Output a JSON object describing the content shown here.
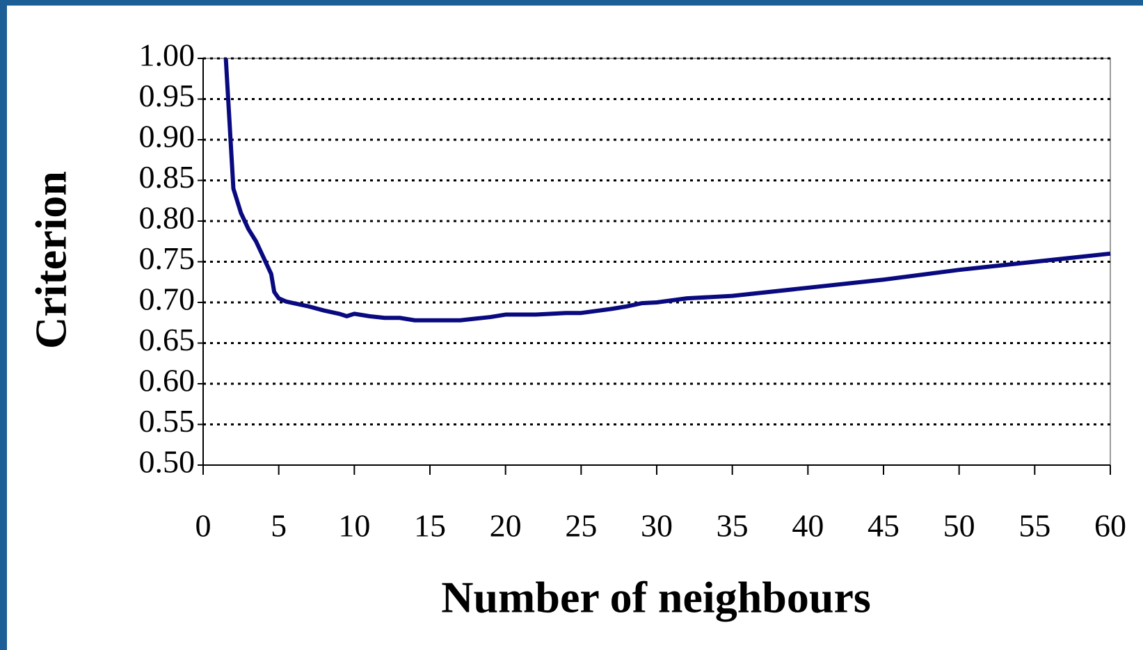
{
  "chart_data": {
    "type": "line",
    "x_label": "Number of neighbours",
    "y_label": "Criterion",
    "x": [
      1.5,
      2,
      2.5,
      3,
      3.5,
      4,
      4.5,
      4.7,
      5,
      5.5,
      6,
      7,
      8,
      9,
      9.5,
      10,
      11,
      12,
      13,
      14,
      15,
      16,
      17,
      18,
      19,
      20,
      22,
      24,
      25,
      27,
      28,
      29,
      30,
      32,
      35,
      40,
      45,
      50,
      55,
      60
    ],
    "series": [
      {
        "name": "Criterion",
        "color": "#0a0a80",
        "values": [
          1.0,
          0.84,
          0.81,
          0.79,
          0.775,
          0.755,
          0.735,
          0.713,
          0.705,
          0.701,
          0.699,
          0.695,
          0.69,
          0.686,
          0.683,
          0.686,
          0.683,
          0.681,
          0.681,
          0.678,
          0.678,
          0.678,
          0.678,
          0.68,
          0.682,
          0.685,
          0.685,
          0.687,
          0.687,
          0.692,
          0.695,
          0.699,
          0.7,
          0.705,
          0.708,
          0.718,
          0.728,
          0.74,
          0.75,
          0.76
        ]
      }
    ],
    "xlim": [
      0,
      60
    ],
    "xticks": [
      0,
      5,
      10,
      15,
      20,
      25,
      30,
      35,
      40,
      45,
      50,
      55,
      60
    ],
    "ylim": [
      0.5,
      1.0
    ],
    "yticks": [
      {
        "value": 0.5,
        "label": "0.50"
      },
      {
        "value": 0.55,
        "label": "0.55"
      },
      {
        "value": 0.6,
        "label": "0.60"
      },
      {
        "value": 0.65,
        "label": "0.65"
      },
      {
        "value": 0.7,
        "label": "0.70"
      },
      {
        "value": 0.75,
        "label": "0.75"
      },
      {
        "value": 0.8,
        "label": "0.80"
      },
      {
        "value": 0.85,
        "label": "0.85"
      },
      {
        "value": 0.9,
        "label": "0.90"
      },
      {
        "value": 0.95,
        "label": "0.95"
      },
      {
        "value": 1.0,
        "label": "1.00"
      }
    ],
    "grid": true
  }
}
